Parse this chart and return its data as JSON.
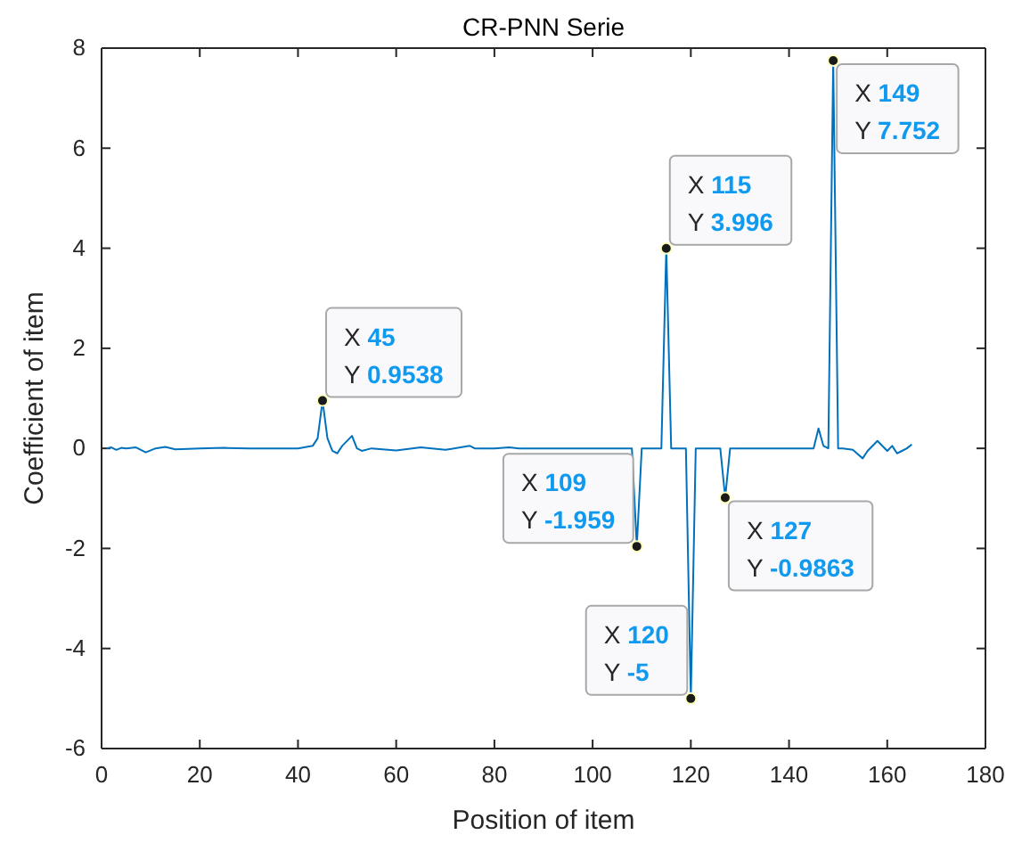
{
  "chart_data": {
    "type": "line",
    "title": "CR-PNN Serie",
    "xlabel": "Position of item",
    "ylabel": "Coefficient of item",
    "xlim": [
      0,
      180
    ],
    "xticks": [
      0,
      20,
      40,
      60,
      80,
      100,
      120,
      140,
      160,
      180
    ],
    "ylim": [
      -6,
      8
    ],
    "yticks": [
      -6,
      -4,
      -2,
      0,
      2,
      4,
      6,
      8
    ],
    "grid": false,
    "marker": "none",
    "line_style": "solid",
    "series": [
      {
        "color": "#0072bd",
        "x": [
          1,
          2,
          3,
          4,
          5,
          7,
          9,
          11,
          13,
          15,
          20,
          25,
          30,
          35,
          40,
          43,
          44,
          45,
          46,
          47,
          48,
          49,
          51,
          52,
          53,
          55,
          60,
          65,
          70,
          75,
          76,
          80,
          83,
          85,
          90,
          95,
          100,
          105,
          108,
          109,
          110,
          111,
          114,
          115,
          116,
          119,
          120,
          121,
          126,
          127,
          128,
          130,
          140,
          145,
          146,
          147,
          148,
          149,
          150,
          151,
          153,
          155,
          156,
          158,
          160,
          161,
          162,
          164,
          165
        ],
        "values": [
          0,
          0.02,
          -0.03,
          0.01,
          0,
          0.02,
          -0.08,
          0,
          0.03,
          -0.02,
          0,
          0.01,
          0,
          0,
          0,
          0.05,
          0.2,
          0.9538,
          0.2,
          -0.05,
          -0.1,
          0.05,
          0.25,
          0,
          -0.05,
          0,
          -0.04,
          0.02,
          -0.03,
          0.05,
          0,
          0,
          0.02,
          0,
          0,
          0,
          0,
          0,
          0,
          -1.959,
          0,
          0,
          0,
          3.996,
          0,
          0,
          -5,
          0,
          0,
          -0.9863,
          0,
          0,
          0,
          0,
          0.4,
          0.05,
          0,
          7.752,
          0,
          0,
          -0.03,
          -0.2,
          -0.05,
          0.15,
          -0.05,
          0.05,
          -0.1,
          0,
          0.08
        ]
      }
    ],
    "annotations": [
      {
        "text": "X 45\nY 0.9538",
        "x": 45,
        "y": 0.9538
      },
      {
        "text": "X 109\nY -1.959",
        "x": 109,
        "y": -1.959
      },
      {
        "text": "X 115\nY 3.996",
        "x": 115,
        "y": 3.996
      },
      {
        "text": "X 120\nY -5",
        "x": 120,
        "y": -5
      },
      {
        "text": "X 127\nY -0.9863",
        "x": 127,
        "y": -0.9863
      },
      {
        "text": "X 149\nY 7.752",
        "x": 149,
        "y": 7.752
      }
    ]
  }
}
